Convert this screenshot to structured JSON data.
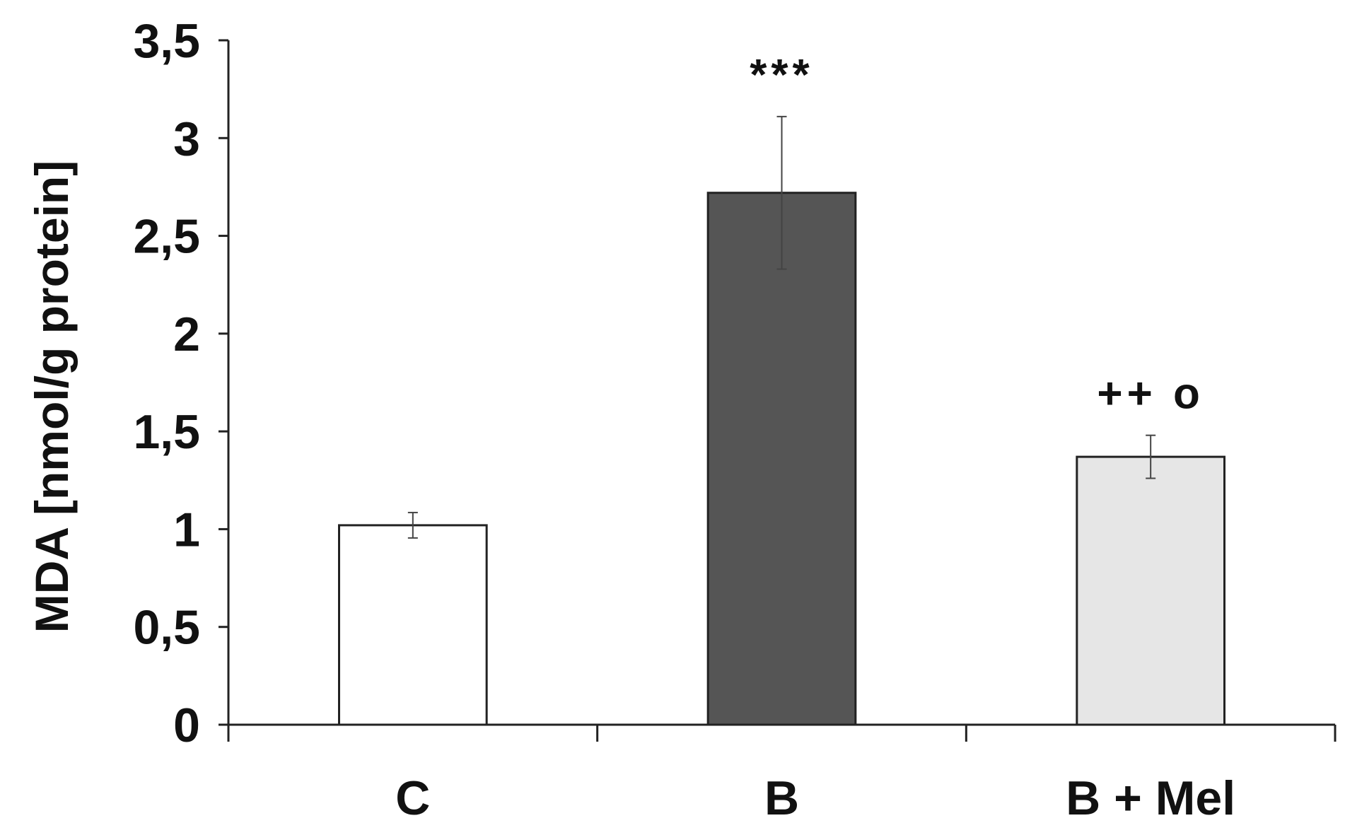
{
  "chart_data": {
    "type": "bar",
    "title": "",
    "xlabel": "",
    "ylabel": "MDA [nmol/g protein]",
    "categories": [
      "C",
      "B",
      "B + Mel"
    ],
    "values": [
      1.02,
      2.72,
      1.37
    ],
    "errors": [
      0.065,
      0.39,
      0.11
    ],
    "annotations": [
      "",
      "***",
      "++ o"
    ],
    "bar_colors": [
      "#ffffff",
      "#555555",
      "#e6e6e6"
    ],
    "bar_edge_color": "#222222",
    "ylim": [
      0,
      3.5
    ],
    "yticks": [
      0,
      0.5,
      1,
      1.5,
      2,
      2.5,
      3,
      3.5
    ],
    "ytick_labels": [
      "0",
      "0,5",
      "1",
      "1,5",
      "2",
      "2,5",
      "3",
      "3,5"
    ],
    "grid": false,
    "legend": "none"
  }
}
